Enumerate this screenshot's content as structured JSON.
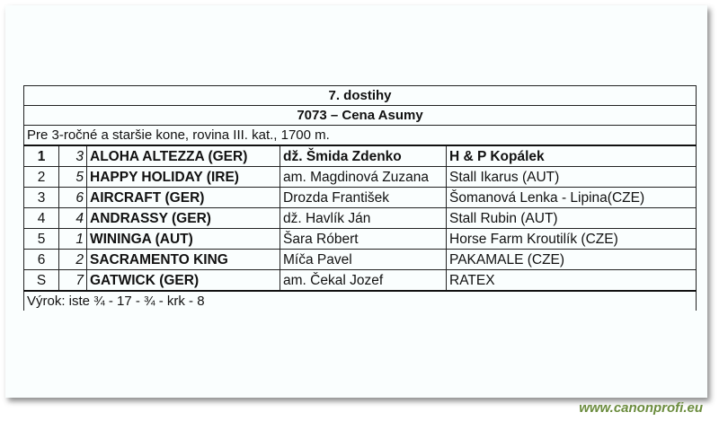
{
  "race": {
    "title": "7. dostihy",
    "name": "7073 – Cena Asumy",
    "conditions": "Pre 3-ročné a staršie kone, rovina III. kat., 1700 m.",
    "results": [
      {
        "place": "1",
        "number": "3",
        "horse": "ALOHA ALTEZZA (GER)",
        "jockey": "dž. Šmida Zdenko",
        "owner": "H & P Kopálek"
      },
      {
        "place": "2",
        "number": "5",
        "horse": "HAPPY HOLIDAY (IRE)",
        "jockey": "am. Magdinová Zuzana",
        "owner": "Stall Ikarus (AUT)"
      },
      {
        "place": "3",
        "number": "6",
        "horse": "AIRCRAFT (GER)",
        "jockey": "Drozda František",
        "owner": "Šomanová Lenka - Lipina(CZE)"
      },
      {
        "place": "4",
        "number": "4",
        "horse": "ANDRASSY (GER)",
        "jockey": "dž. Havlík Ján",
        "owner": "Stall Rubin (AUT)"
      },
      {
        "place": "5",
        "number": "1",
        "horse": "WININGA (AUT)",
        "jockey": "Šara Róbert",
        "owner": "Horse Farm Kroutilík (CZE)"
      },
      {
        "place": "6",
        "number": "2",
        "horse": "SACRAMENTO KING",
        "jockey": "Míča Pavel",
        "owner": "PAKAMALE (CZE)"
      },
      {
        "place": "S",
        "number": "7",
        "horse": "GATWICK (GER)",
        "jockey": "am. Čekal Jozef",
        "owner": "RATEX"
      }
    ],
    "margins": "Výrok: iste ¾ - 17 - ¾ - krk - 8"
  },
  "watermark": "www.canonprofi.eu",
  "colors": {
    "watermark": "#6b8c3e"
  }
}
